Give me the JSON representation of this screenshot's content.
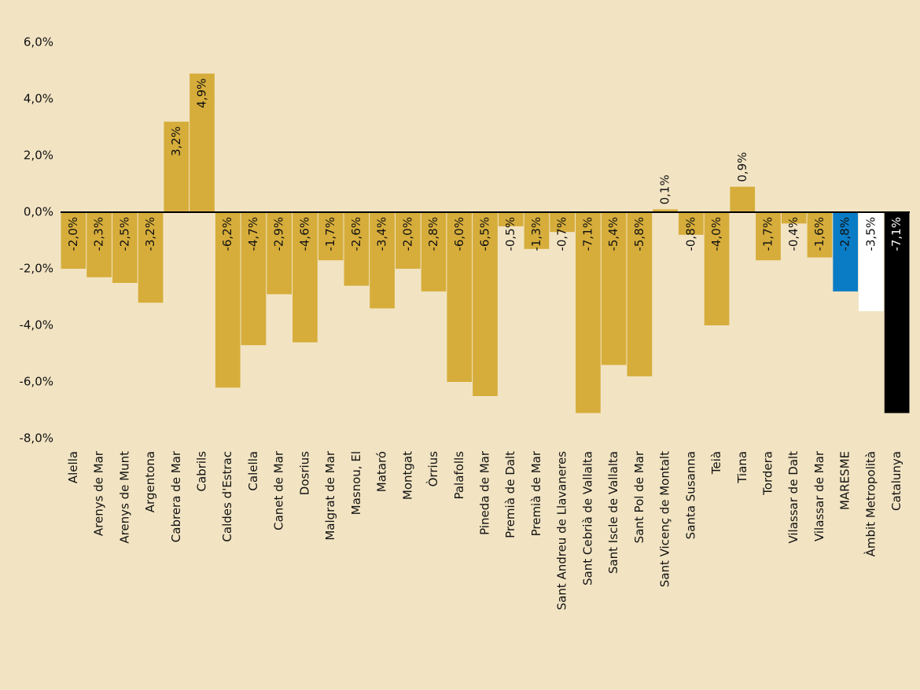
{
  "chart_data": {
    "type": "bar",
    "categories": [
      "Alella",
      "Arenys de Mar",
      "Arenys de Munt",
      "Argentona",
      "Cabrera de Mar",
      "Cabrils",
      "Caldes d'Estrac",
      "Calella",
      "Canet de Mar",
      "Dosrius",
      "Malgrat de Mar",
      "Masnou, El",
      "Mataró",
      "Montgat",
      "Òrrius",
      "Palafolls",
      "Pineda de Mar",
      "Premià de Dalt",
      "Premià de Mar",
      "Sant Andreu de Llavaneres",
      "Sant Cebrià de Vallalta",
      "Sant Iscle de Vallalta",
      "Sant Pol de Mar",
      "Sant Vicenç de Montalt",
      "Santa Susanna",
      "Teià",
      "Tiana",
      "Tordera",
      "Vilassar de Dalt",
      "Vilassar de Mar",
      "MARESME",
      "Àmbit Metropolità",
      "Catalunya"
    ],
    "values": [
      -2.0,
      -2.3,
      -2.5,
      -3.2,
      3.2,
      4.9,
      -6.2,
      -4.7,
      -2.9,
      -4.6,
      -1.7,
      -2.6,
      -3.4,
      -2.0,
      -2.8,
      -6.0,
      -6.5,
      -0.5,
      -1.3,
      -0.7,
      -7.1,
      -5.4,
      -5.8,
      0.1,
      -0.8,
      -4.0,
      0.9,
      -1.7,
      -0.4,
      -1.6,
      -2.8,
      -3.5,
      -7.1
    ],
    "value_labels": [
      "-2,0%",
      "-2,3%",
      "-2,5%",
      "-3,2%",
      "3,2%",
      "4,9%",
      "-6,2%",
      "-4,7%",
      "-2,9%",
      "-4,6%",
      "-1,7%",
      "-2,6%",
      "-3,4%",
      "-2,0%",
      "-2,8%",
      "-6,0%",
      "-6,5%",
      "-0,5%",
      "-1,3%",
      "-0,7%",
      "-7,1%",
      "-5,4%",
      "-5,8%",
      "0,1%",
      "-0,8%",
      "-4,0%",
      "0,9%",
      "-1,7%",
      "-0,4%",
      "-1,6%",
      "-2,8%",
      "-3,5%",
      "-7,1%"
    ],
    "colors": [
      "#d6ad3b",
      "#d6ad3b",
      "#d6ad3b",
      "#d6ad3b",
      "#d6ad3b",
      "#d6ad3b",
      "#d6ad3b",
      "#d6ad3b",
      "#d6ad3b",
      "#d6ad3b",
      "#d6ad3b",
      "#d6ad3b",
      "#d6ad3b",
      "#d6ad3b",
      "#d6ad3b",
      "#d6ad3b",
      "#d6ad3b",
      "#d6ad3b",
      "#d6ad3b",
      "#d6ad3b",
      "#d6ad3b",
      "#d6ad3b",
      "#d6ad3b",
      "#d6ad3b",
      "#d6ad3b",
      "#d6ad3b",
      "#d6ad3b",
      "#d6ad3b",
      "#d6ad3b",
      "#d6ad3b",
      "#0a7cc6",
      "#ffffff",
      "#000000"
    ],
    "ylim": [
      -8,
      6
    ],
    "yticks": [
      {
        "value": -8,
        "label": "-8,0%"
      },
      {
        "value": -6,
        "label": "-6,0%"
      },
      {
        "value": -4,
        "label": "-4,0%"
      },
      {
        "value": -2,
        "label": "-2,0%"
      },
      {
        "value": 0,
        "label": "0,0%"
      },
      {
        "value": 2,
        "label": "2,0%"
      },
      {
        "value": 4,
        "label": "4,0%"
      },
      {
        "value": 6,
        "label": "6,0%"
      }
    ],
    "grid": false
  }
}
